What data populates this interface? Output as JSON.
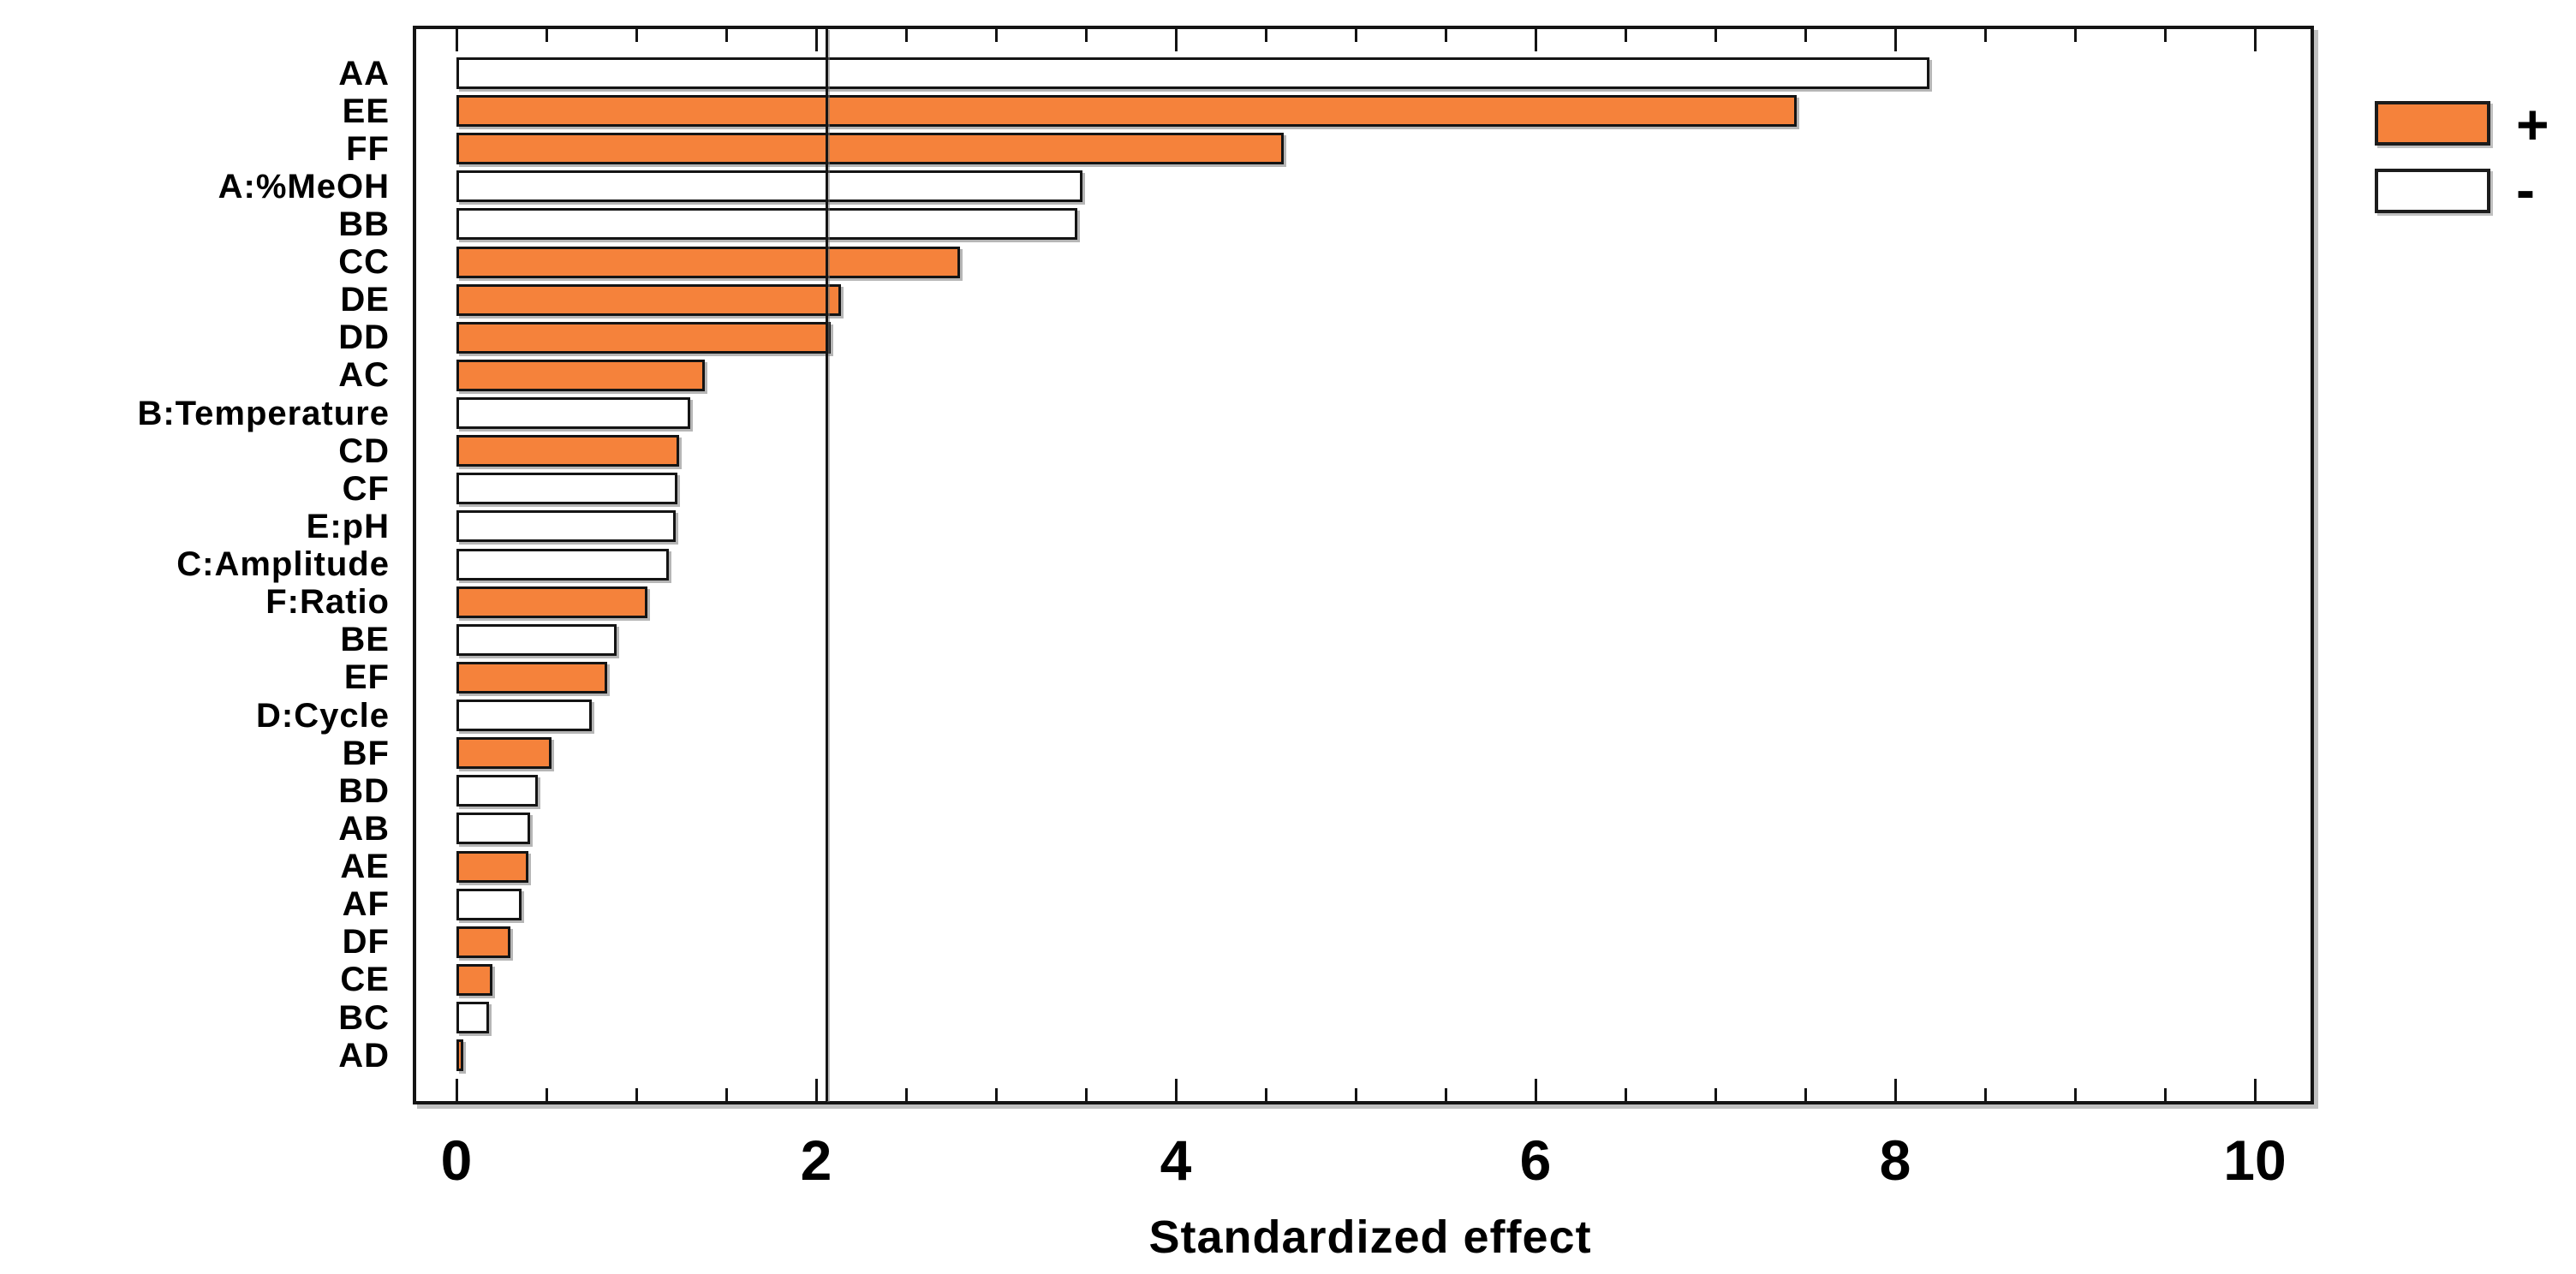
{
  "chart_data": {
    "type": "bar",
    "orientation": "horizontal",
    "xlabel": "Standardized effect",
    "ylabel": "",
    "title": "",
    "xlim": [
      0,
      10.35
    ],
    "x_ticks": [
      0,
      2,
      4,
      6,
      8,
      10
    ],
    "x_tick_labels": [
      "0",
      "2",
      "4",
      "6",
      "8",
      "10"
    ],
    "minor_tick_step": 0.5,
    "grid": false,
    "reference_line": {
      "value": 2.06,
      "meaning": "critical-t-line"
    },
    "legend_position": "top-right",
    "legend": [
      {
        "label": "+",
        "sign": "pos",
        "color": "#F5823B"
      },
      {
        "label": "-",
        "sign": "neg",
        "color": "#FFFFFF"
      }
    ],
    "bars": [
      {
        "label": "AA",
        "value": 8.19,
        "sign": "neg"
      },
      {
        "label": "EE",
        "value": 7.45,
        "sign": "pos"
      },
      {
        "label": "FF",
        "value": 4.6,
        "sign": "pos"
      },
      {
        "label": "A:%MeOH",
        "value": 3.48,
        "sign": "neg"
      },
      {
        "label": "BB",
        "value": 3.45,
        "sign": "neg"
      },
      {
        "label": "CC",
        "value": 2.8,
        "sign": "pos"
      },
      {
        "label": "DE",
        "value": 2.14,
        "sign": "pos"
      },
      {
        "label": "DD",
        "value": 2.08,
        "sign": "pos"
      },
      {
        "label": "AC",
        "value": 1.38,
        "sign": "pos"
      },
      {
        "label": "B:Temperature",
        "value": 1.3,
        "sign": "neg"
      },
      {
        "label": "CD",
        "value": 1.24,
        "sign": "pos"
      },
      {
        "label": "CF",
        "value": 1.23,
        "sign": "neg"
      },
      {
        "label": "E:pH",
        "value": 1.22,
        "sign": "neg"
      },
      {
        "label": "C:Amplitude",
        "value": 1.18,
        "sign": "neg"
      },
      {
        "label": "F:Ratio",
        "value": 1.06,
        "sign": "pos"
      },
      {
        "label": "BE",
        "value": 0.89,
        "sign": "neg"
      },
      {
        "label": "EF",
        "value": 0.84,
        "sign": "pos"
      },
      {
        "label": "D:Cycle",
        "value": 0.75,
        "sign": "neg"
      },
      {
        "label": "BF",
        "value": 0.53,
        "sign": "pos"
      },
      {
        "label": "BD",
        "value": 0.45,
        "sign": "neg"
      },
      {
        "label": "AB",
        "value": 0.41,
        "sign": "neg"
      },
      {
        "label": "AE",
        "value": 0.4,
        "sign": "pos"
      },
      {
        "label": "AF",
        "value": 0.36,
        "sign": "neg"
      },
      {
        "label": "DF",
        "value": 0.3,
        "sign": "pos"
      },
      {
        "label": "CE",
        "value": 0.2,
        "sign": "pos"
      },
      {
        "label": "BC",
        "value": 0.18,
        "sign": "neg"
      },
      {
        "label": "AD",
        "value": 0.04,
        "sign": "pos"
      }
    ]
  },
  "colors": {
    "positive_bar": "#F5823B",
    "negative_bar": "#FFFFFF",
    "stroke": "#141414",
    "background": "#FFFFFF",
    "text": "#000000"
  }
}
